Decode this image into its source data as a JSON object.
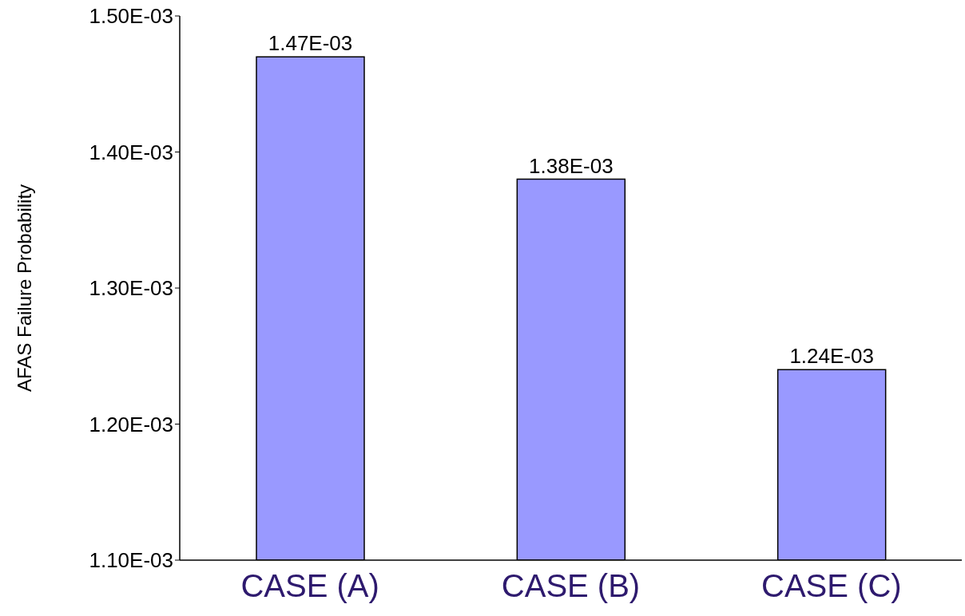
{
  "chart_data": {
    "type": "bar",
    "ylabel": "AFAS Failure Probability",
    "categories": [
      "CASE (A)",
      "CASE (B)",
      "CASE (C)"
    ],
    "values": [
      0.00147,
      0.00138,
      0.00124
    ],
    "value_labels": [
      "1.47E-03",
      "1.38E-03",
      "1.24E-03"
    ],
    "color": "#9999ff",
    "ylim": [
      0.0011,
      0.0015
    ],
    "yticks": [
      {
        "value": 0.0011,
        "label": "1.10E-03"
      },
      {
        "value": 0.0012,
        "label": "1.20E-03"
      },
      {
        "value": 0.0013,
        "label": "1.30E-03"
      },
      {
        "value": 0.0014,
        "label": "1.40E-03"
      },
      {
        "value": 0.0015,
        "label": "1.50E-03"
      }
    ],
    "grid": false,
    "legend": false
  }
}
